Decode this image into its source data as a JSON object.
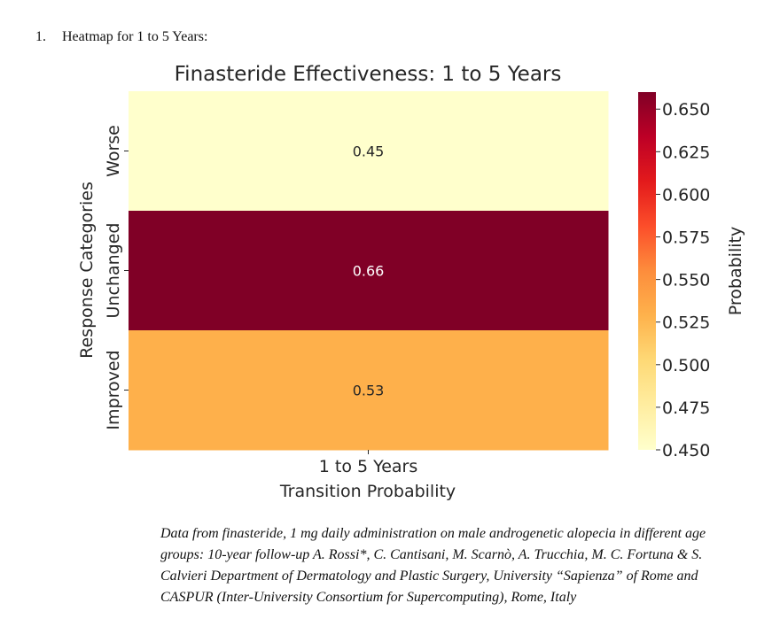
{
  "heading": {
    "number": "1.",
    "text": "Heatmap for 1 to 5 Years:"
  },
  "chart_data": {
    "type": "heatmap",
    "title": "Finasteride Effectiveness: 1 to 5 Years",
    "xlabel": "Transition Probability",
    "ylabel": "Response Categories",
    "x_categories": [
      "1 to 5 Years"
    ],
    "y_categories": [
      "Worse",
      "Unchanged",
      "Improved"
    ],
    "values": [
      [
        0.45
      ],
      [
        0.66
      ],
      [
        0.53
      ]
    ],
    "value_labels": [
      "0.45",
      "0.66",
      "0.53"
    ],
    "colorbar": {
      "label": "Probability",
      "range": [
        0.45,
        0.66
      ],
      "ticks": [
        "0.450",
        "0.475",
        "0.500",
        "0.525",
        "0.550",
        "0.575",
        "0.600",
        "0.625",
        "0.650"
      ],
      "colormap": "YlOrRd"
    },
    "grid": false
  },
  "caption": "Data from finasteride, 1 mg daily administration on male androgenetic alopecia in different age groups: 10-year follow-up A. Rossi*, C. Cantisani, M. Scarnò, A. Trucchia, M. C. Fortuna & S. Calvieri Department of Dermatology and Plastic Surgery, University “Sapienza” of Rome and CASPUR (Inter-University Consortium for Supercomputing), Rome, Italy"
}
